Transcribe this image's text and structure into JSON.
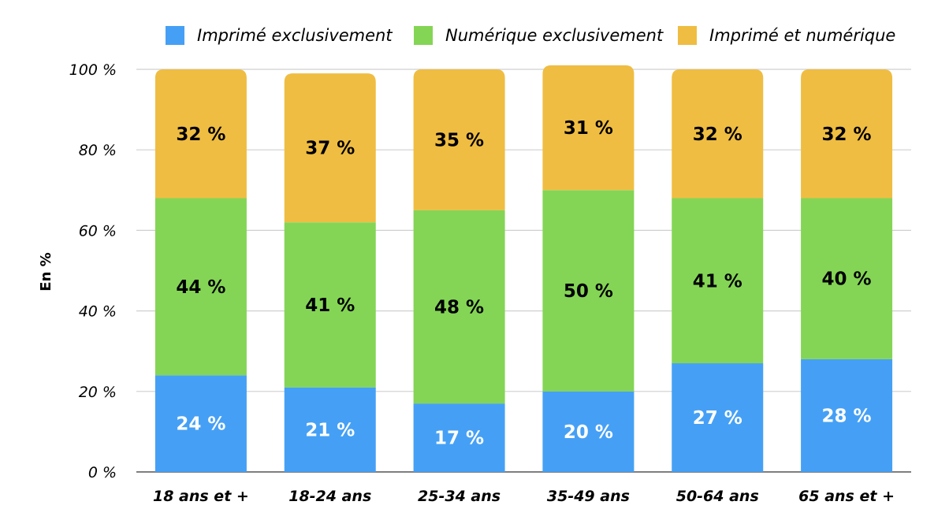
{
  "chart_data": {
    "type": "bar",
    "stacked": true,
    "title": "",
    "xlabel": "",
    "ylabel": "En %",
    "ylim": [
      0,
      100
    ],
    "yticks": [
      "0 %",
      "20 %",
      "40 %",
      "60 %",
      "80 %",
      "100 %"
    ],
    "grid": true,
    "legend_position": "top",
    "categories": [
      "18 ans et +",
      "18-24 ans",
      "25-34 ans",
      "35-49 ans",
      "50-64 ans",
      "65 ans et +"
    ],
    "series": [
      {
        "name": "Imprimé exclusivement",
        "color": "#45a0f5",
        "label_color": "#ffffff",
        "values": [
          24,
          21,
          17,
          20,
          27,
          28
        ],
        "labels": [
          "24 %",
          "21 %",
          "17 %",
          "20 %",
          "27 %",
          "28 %"
        ]
      },
      {
        "name": "Numérique exclusivement",
        "color": "#84d555",
        "label_color": "#000000",
        "values": [
          44,
          41,
          48,
          50,
          41,
          40
        ],
        "labels": [
          "44 %",
          "41 %",
          "48 %",
          "50 %",
          "41 %",
          "40 %"
        ]
      },
      {
        "name": "Imprimé et numérique",
        "color": "#efbd42",
        "label_color": "#000000",
        "values": [
          32,
          37,
          35,
          31,
          32,
          32
        ],
        "labels": [
          "32 %",
          "37 %",
          "35 %",
          "31 %",
          "32 %",
          "32 %"
        ]
      }
    ]
  }
}
